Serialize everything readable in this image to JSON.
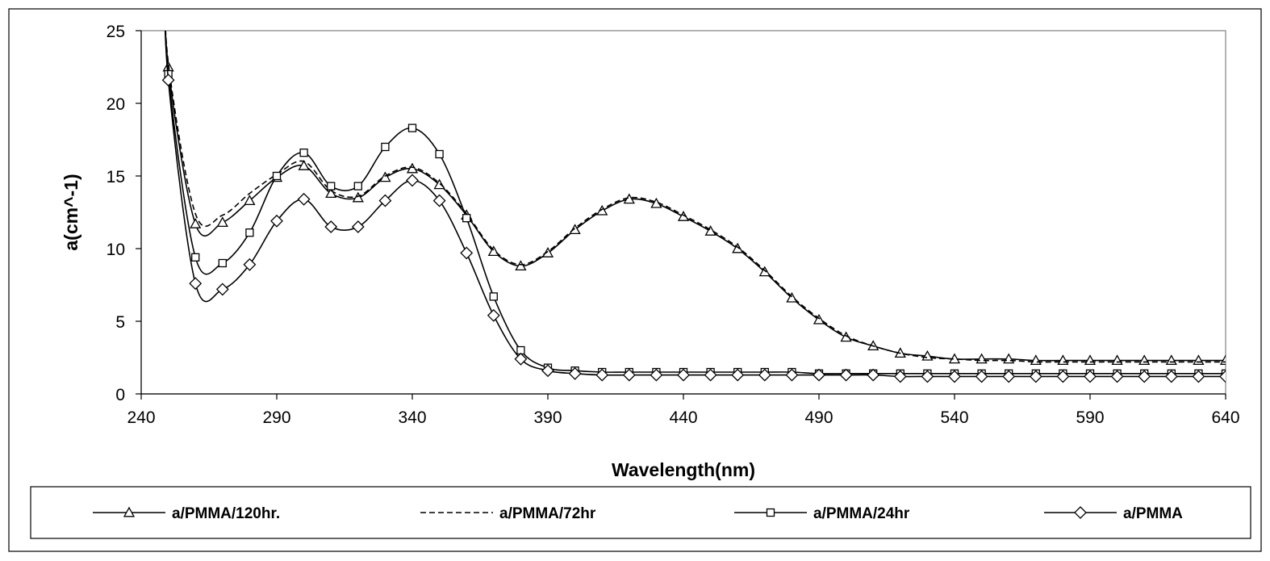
{
  "chart_data": {
    "type": "line",
    "title": "",
    "xlabel": "Wavelength(nm)",
    "ylabel": "a(cm^-1)",
    "xlim": [
      240,
      640
    ],
    "ylim": [
      0,
      25
    ],
    "xticks": [
      240,
      290,
      340,
      390,
      440,
      490,
      540,
      590,
      640
    ],
    "yticks": [
      0,
      5,
      10,
      15,
      20,
      25
    ],
    "grid": false,
    "legend_position": "bottom",
    "series": [
      {
        "name": "a/PMMA/120hr.",
        "marker": "triangle",
        "dash": "solid",
        "color": "#000000",
        "x": [
          250,
          260,
          270,
          280,
          290,
          300,
          310,
          320,
          330,
          340,
          350,
          360,
          370,
          380,
          390,
          400,
          410,
          420,
          430,
          440,
          450,
          460,
          470,
          480,
          490,
          500,
          510,
          520,
          530,
          540,
          550,
          560,
          570,
          580,
          590,
          600,
          610,
          620,
          630,
          640
        ],
        "y": [
          22.5,
          11.7,
          11.8,
          13.3,
          14.9,
          15.7,
          13.8,
          13.5,
          14.9,
          15.5,
          14.4,
          12.3,
          9.8,
          8.8,
          9.7,
          11.3,
          12.6,
          13.4,
          13.1,
          12.2,
          11.2,
          10.0,
          8.4,
          6.6,
          5.1,
          3.9,
          3.3,
          2.8,
          2.6,
          2.4,
          2.4,
          2.4,
          2.3,
          2.3,
          2.3,
          2.3,
          2.3,
          2.3,
          2.3,
          2.3
        ]
      },
      {
        "name": "a/PMMA/72hr",
        "marker": "none",
        "dash": "dashed",
        "color": "#000000",
        "x": [
          250,
          260,
          270,
          280,
          290,
          300,
          310,
          320,
          330,
          340,
          350,
          360,
          370,
          380,
          390,
          400,
          410,
          420,
          430,
          440,
          450,
          460,
          470,
          480,
          490,
          500,
          510,
          520,
          530,
          540,
          550,
          560,
          570,
          580,
          590,
          600,
          610,
          620,
          630,
          640
        ],
        "y": [
          22.8,
          12.4,
          12.3,
          13.8,
          15.1,
          16.0,
          14.0,
          13.6,
          15.0,
          15.6,
          14.5,
          12.4,
          9.9,
          8.9,
          9.8,
          11.4,
          12.7,
          13.5,
          13.2,
          12.3,
          11.3,
          10.1,
          8.5,
          6.7,
          5.2,
          4.0,
          3.3,
          2.8,
          2.5,
          2.4,
          2.3,
          2.3,
          2.2,
          2.2,
          2.2,
          2.2,
          2.2,
          2.2,
          2.2,
          2.2
        ]
      },
      {
        "name": "a/PMMA/24hr",
        "marker": "square",
        "dash": "solid",
        "color": "#000000",
        "x": [
          250,
          260,
          270,
          280,
          290,
          300,
          310,
          320,
          330,
          340,
          350,
          360,
          370,
          380,
          390,
          400,
          410,
          420,
          430,
          440,
          450,
          460,
          470,
          480,
          490,
          500,
          510,
          520,
          530,
          540,
          550,
          560,
          570,
          580,
          590,
          600,
          610,
          620,
          630,
          640
        ],
        "y": [
          22.0,
          9.4,
          9.0,
          11.1,
          15.0,
          16.6,
          14.3,
          14.3,
          17.0,
          18.3,
          16.5,
          12.1,
          6.7,
          3.0,
          1.8,
          1.6,
          1.5,
          1.5,
          1.5,
          1.5,
          1.5,
          1.5,
          1.5,
          1.5,
          1.4,
          1.4,
          1.4,
          1.4,
          1.4,
          1.4,
          1.4,
          1.4,
          1.4,
          1.4,
          1.4,
          1.4,
          1.4,
          1.4,
          1.4,
          1.4
        ]
      },
      {
        "name": "a/PMMA",
        "marker": "diamond",
        "dash": "solid",
        "color": "#000000",
        "x": [
          250,
          260,
          270,
          280,
          290,
          300,
          310,
          320,
          330,
          340,
          350,
          360,
          370,
          380,
          390,
          400,
          410,
          420,
          430,
          440,
          450,
          460,
          470,
          480,
          490,
          500,
          510,
          520,
          530,
          540,
          550,
          560,
          570,
          580,
          590,
          600,
          610,
          620,
          630,
          640
        ],
        "y": [
          21.6,
          7.6,
          7.2,
          8.9,
          11.9,
          13.4,
          11.5,
          11.5,
          13.3,
          14.7,
          13.3,
          9.7,
          5.4,
          2.4,
          1.6,
          1.4,
          1.3,
          1.3,
          1.3,
          1.3,
          1.3,
          1.3,
          1.3,
          1.3,
          1.3,
          1.3,
          1.3,
          1.2,
          1.2,
          1.2,
          1.2,
          1.2,
          1.2,
          1.2,
          1.2,
          1.2,
          1.2,
          1.2,
          1.2,
          1.2
        ]
      }
    ]
  }
}
